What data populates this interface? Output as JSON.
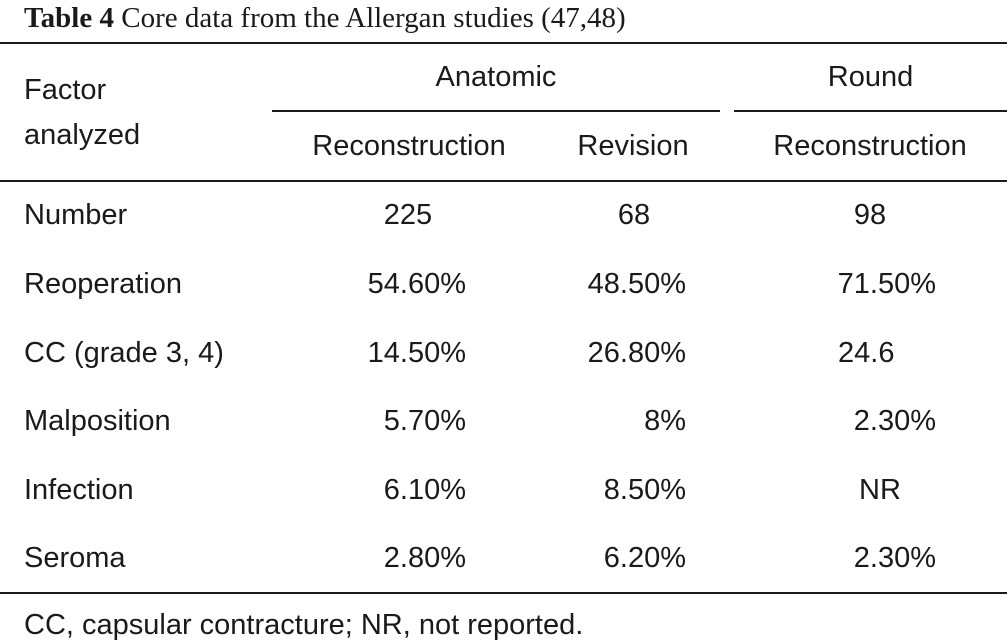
{
  "caption": {
    "label": "Table 4",
    "title": "Core data from the Allergan studies (47,48)"
  },
  "header": {
    "factor": [
      "Factor",
      "analyzed"
    ],
    "groups": [
      "Anatomic",
      "Round"
    ],
    "columns": [
      "Reconstruction",
      "Revision",
      "Reconstruction"
    ]
  },
  "rows": [
    {
      "factor": "Number",
      "values": [
        "225",
        "68",
        "98"
      ]
    },
    {
      "factor": "Reoperation",
      "values": [
        "54.60%",
        "48.50%",
        "71.50%"
      ]
    },
    {
      "factor": "CC (grade 3, 4)",
      "values": [
        "14.50%",
        "26.80%",
        "24.6"
      ]
    },
    {
      "factor": "Malposition",
      "values": [
        "5.70%",
        "8%",
        "2.30%"
      ]
    },
    {
      "factor": "Infection",
      "values": [
        "6.10%",
        "8.50%",
        "NR"
      ]
    },
    {
      "factor": "Seroma",
      "values": [
        "2.80%",
        "6.20%",
        "2.30%"
      ]
    }
  ],
  "footnote": "CC, capsular contracture; NR, not reported."
}
